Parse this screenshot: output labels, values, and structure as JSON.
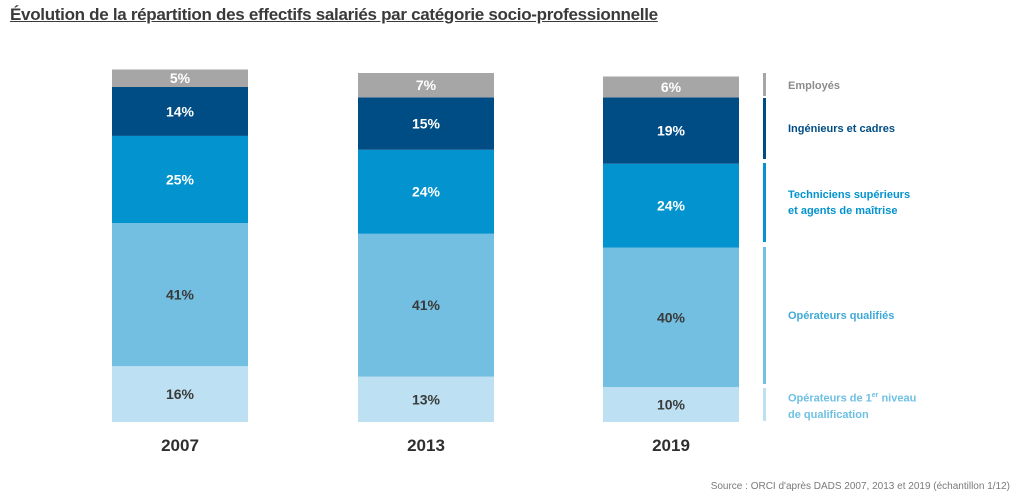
{
  "title": "Évolution de la répartition des effectifs salariés par catégorie socio-professionnelle",
  "source": "Source : ORCI d'après DADS 2007, 2013 et 2019 (échantillon 1/12)",
  "chart_data": {
    "type": "bar",
    "stacked": true,
    "categories": [
      "2007",
      "2013",
      "2019"
    ],
    "series": [
      {
        "name": "Opérateurs de 1er niveau de qualification",
        "color": "#bde1f3",
        "values": [
          16,
          13,
          10
        ],
        "labels": [
          "16%",
          "13%",
          "10%"
        ]
      },
      {
        "name": "Opérateurs qualifiés",
        "color": "#73bfe1",
        "values": [
          41,
          41,
          40
        ],
        "labels": [
          "41%",
          "41%",
          "40%"
        ]
      },
      {
        "name": "Techniciens supérieurs et agents de maîtrise",
        "color": "#0393ce",
        "values": [
          25,
          24,
          24
        ],
        "labels": [
          "25%",
          "24%",
          "24%"
        ]
      },
      {
        "name": "Ingénieurs et cadres",
        "color": "#004d86",
        "values": [
          14,
          15,
          19
        ],
        "labels": [
          "14%",
          "15%",
          "19%"
        ]
      },
      {
        "name": "Employés",
        "color": "#a6a6a6",
        "values": [
          5,
          7,
          6
        ],
        "labels": [
          "5%",
          "7%",
          "6%"
        ]
      }
    ],
    "ylim": [
      0,
      100
    ],
    "legend_position": "right",
    "grid": false
  },
  "legend": [
    {
      "line1": "Employés",
      "color": "#8c8c8c",
      "bar_color": "#a6a6a6"
    },
    {
      "line1": "Ingénieurs et cadres",
      "color": "#004d86",
      "bar_color": "#004d86"
    },
    {
      "line1": "Techniciens supérieurs",
      "line2": "et agents de maîtrise",
      "color": "#0393ce",
      "bar_color": "#0393ce"
    },
    {
      "line1": "Opérateurs qualifiés",
      "color": "#3faad6",
      "bar_color": "#73bfe1"
    },
    {
      "line1_pre": "Opérateurs de 1",
      "line1_sup": "er",
      "line1_post": " niveau",
      "line2": "de qualification",
      "color": "#6ec0e3",
      "bar_color": "#bde1f3"
    }
  ]
}
